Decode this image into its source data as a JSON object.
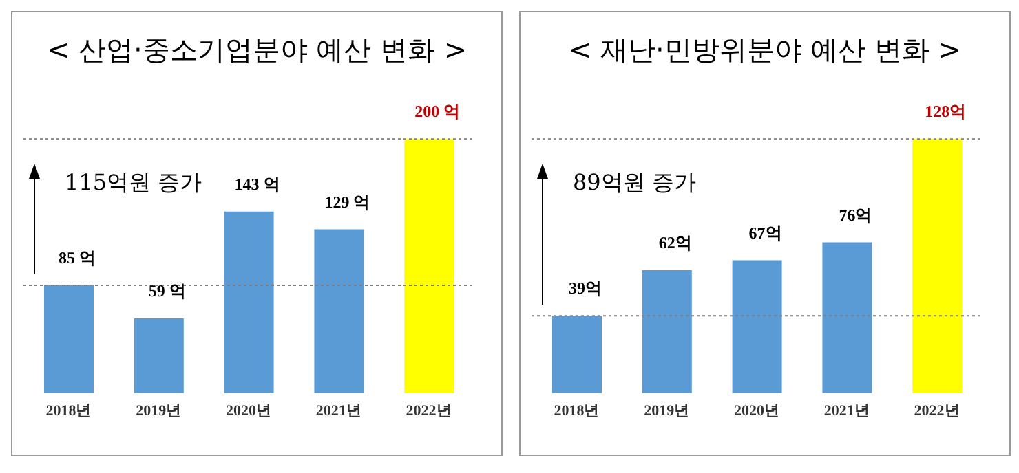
{
  "chart_data": [
    {
      "type": "bar",
      "title": "< 산업·중소기업분야 예산 변화 >",
      "categories": [
        "2018년",
        "2019년",
        "2020년",
        "2021년",
        "2022년"
      ],
      "values": [
        85,
        59,
        143,
        129,
        200
      ],
      "colors": [
        "#5b9bd5",
        "#5b9bd5",
        "#5b9bd5",
        "#5b9bd5",
        "#ffff00"
      ],
      "value_labels": [
        "85 억",
        "59 억",
        "143 억",
        "129 억",
        "200 억"
      ],
      "annotations": [
        "115억원 증가"
      ],
      "ref_lines": [
        {
          "axis": "y",
          "value": 85,
          "line_style": "dotted",
          "color": "#808080"
        },
        {
          "axis": "y",
          "value": 200,
          "line_style": "dotted",
          "color": "#808080"
        }
      ]
    },
    {
      "type": "bar",
      "title": "< 재난·민방위분야 예산 변화 >",
      "categories": [
        "2018년",
        "2019년",
        "2020년",
        "2021년",
        "2022년"
      ],
      "values": [
        39,
        62,
        67,
        76,
        128
      ],
      "colors": [
        "#5b9bd5",
        "#5b9bd5",
        "#5b9bd5",
        "#5b9bd5",
        "#ffff00"
      ],
      "value_labels": [
        "39억",
        "62억",
        "67억",
        "76억",
        "128억"
      ],
      "annotations": [
        "89억원 증가"
      ],
      "ref_lines": [
        {
          "axis": "y",
          "value": 39,
          "line_style": "dotted",
          "color": "#808080"
        },
        {
          "axis": "y",
          "value": 128,
          "line_style": "dotted",
          "color": "#808080"
        }
      ]
    }
  ]
}
